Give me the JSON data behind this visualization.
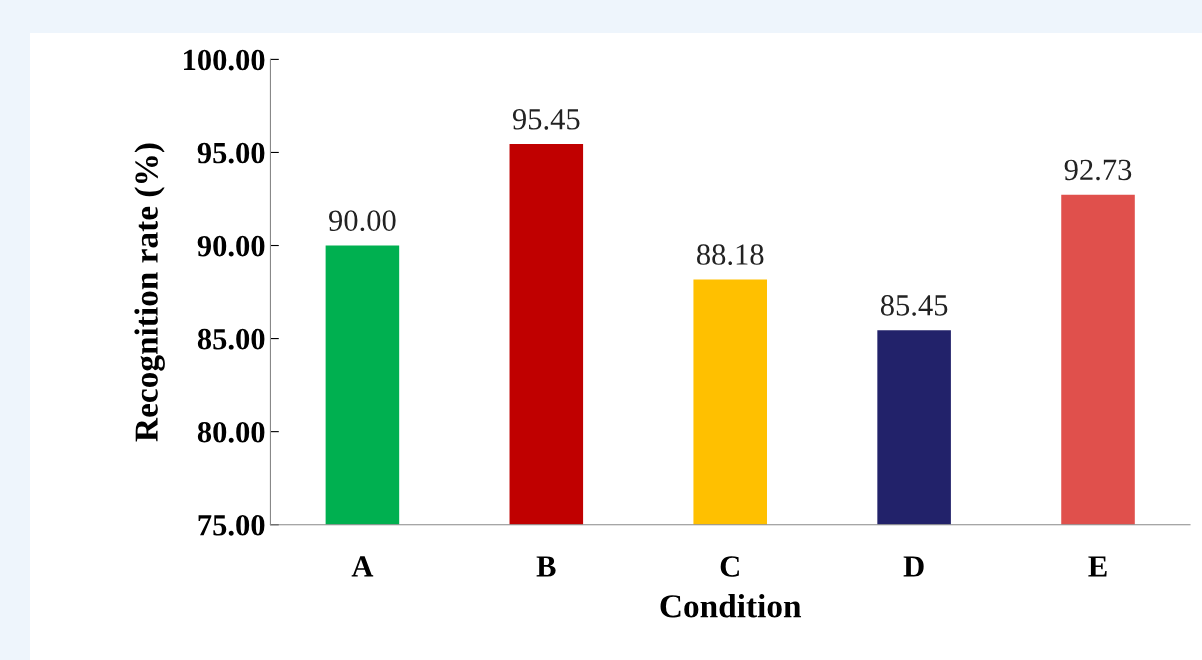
{
  "chart_data": {
    "type": "bar",
    "xlabel": "Condition",
    "ylabel": "Recognition rate (%)",
    "categories": [
      "A",
      "B",
      "C",
      "D",
      "E"
    ],
    "values": [
      90.0,
      95.45,
      88.18,
      85.45,
      92.73
    ],
    "colors": [
      "#00b050",
      "#c00000",
      "#ffc000",
      "#22226a",
      "#e0504c"
    ],
    "value_labels": [
      "90.00",
      "95.45",
      "88.18",
      "85.45",
      "92.73"
    ],
    "ylim": [
      75,
      100
    ],
    "yticks": [
      {
        "value": 75,
        "label": "75.00"
      },
      {
        "value": 80,
        "label": "80.00"
      },
      {
        "value": 85,
        "label": "85.00"
      },
      {
        "value": 90,
        "label": "90.00"
      },
      {
        "value": 95,
        "label": "95.00"
      },
      {
        "value": 100,
        "label": "100.00"
      }
    ],
    "grid": false,
    "legend": false
  }
}
